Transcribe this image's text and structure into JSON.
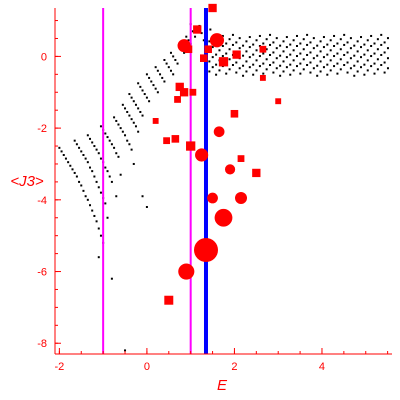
{
  "chart_data": {
    "type": "scatter",
    "title": "",
    "xlabel": "E",
    "ylabel": "<J3>",
    "xlim": [
      -2.1,
      5.6
    ],
    "ylim": [
      -8.3,
      1.35
    ],
    "xticks": [
      -2,
      0,
      2,
      4
    ],
    "yticks": [
      0,
      -2,
      -4,
      -6,
      -8
    ],
    "grid": false,
    "colors": {
      "axis": "#ff0000",
      "bulk_points": "#000000",
      "highlighted_states": "#ff0000",
      "marker_lines": "#ff00ff",
      "reference_line": "#0000ff"
    },
    "vertical_lines": [
      {
        "x": -1.0,
        "color": "#ff00ff"
      },
      {
        "x": 1.0,
        "color": "#ff00ff"
      },
      {
        "x": 1.35,
        "color": "#0000ff"
      }
    ],
    "highlighted_points": [
      {
        "x": 1.35,
        "y": -5.4,
        "weight": 1.0
      },
      {
        "x": 1.75,
        "y": -4.5,
        "weight": 0.55
      },
      {
        "x": 0.9,
        "y": -6.0,
        "weight": 0.45
      },
      {
        "x": 1.25,
        "y": -2.75,
        "weight": 0.3
      },
      {
        "x": 1.6,
        "y": 0.45,
        "weight": 0.35
      },
      {
        "x": 0.85,
        "y": 0.3,
        "weight": 0.3
      },
      {
        "x": 2.15,
        "y": -3.95,
        "weight": 0.25
      },
      {
        "x": 1.5,
        "y": -3.95,
        "weight": 0.2
      },
      {
        "x": 1.65,
        "y": -2.1,
        "weight": 0.2
      },
      {
        "x": 1.9,
        "y": -3.15,
        "weight": 0.18
      },
      {
        "x": 1.0,
        "y": -2.5,
        "weight": 0.15
      },
      {
        "x": 2.5,
        "y": -3.25,
        "weight": 0.12
      },
      {
        "x": 0.5,
        "y": -6.8,
        "weight": 0.14
      },
      {
        "x": 0.85,
        "y": -1.0,
        "weight": 0.12
      },
      {
        "x": 0.75,
        "y": -0.85,
        "weight": 0.12
      },
      {
        "x": 1.75,
        "y": -0.15,
        "weight": 0.15
      },
      {
        "x": 2.05,
        "y": 0.05,
        "weight": 0.12
      },
      {
        "x": 1.15,
        "y": 0.75,
        "weight": 0.12
      },
      {
        "x": 1.5,
        "y": 1.35,
        "weight": 0.12
      },
      {
        "x": 0.95,
        "y": 0.2,
        "weight": 0.1
      },
      {
        "x": 1.3,
        "y": -0.05,
        "weight": 0.1
      },
      {
        "x": 2.0,
        "y": -1.6,
        "weight": 0.1
      },
      {
        "x": 0.65,
        "y": -2.3,
        "weight": 0.1
      },
      {
        "x": 0.7,
        "y": -1.2,
        "weight": 0.08
      },
      {
        "x": 2.65,
        "y": 0.2,
        "weight": 0.08
      },
      {
        "x": 1.4,
        "y": 0.2,
        "weight": 0.1
      },
      {
        "x": 0.45,
        "y": -2.35,
        "weight": 0.08
      },
      {
        "x": 1.05,
        "y": -1.0,
        "weight": 0.08
      },
      {
        "x": 2.15,
        "y": -2.85,
        "weight": 0.08
      },
      {
        "x": 0.2,
        "y": -1.8,
        "weight": 0.06
      },
      {
        "x": 2.65,
        "y": -0.6,
        "weight": 0.06
      },
      {
        "x": 3.0,
        "y": -1.25,
        "weight": 0.06
      }
    ],
    "bulk_points": [
      {
        "x": -2.0,
        "y": -2.55
      },
      {
        "x": -1.95,
        "y": -2.65
      },
      {
        "x": -1.9,
        "y": -2.75
      },
      {
        "x": -1.85,
        "y": -2.85
      },
      {
        "x": -1.8,
        "y": -2.95
      },
      {
        "x": -1.75,
        "y": -3.05
      },
      {
        "x": -1.7,
        "y": -3.15
      },
      {
        "x": -1.65,
        "y": -3.25
      },
      {
        "x": -1.6,
        "y": -3.35
      },
      {
        "x": -1.55,
        "y": -3.5
      },
      {
        "x": -1.5,
        "y": -3.6
      },
      {
        "x": -1.45,
        "y": -3.75
      },
      {
        "x": -1.4,
        "y": -3.9
      },
      {
        "x": -1.35,
        "y": -4.0
      },
      {
        "x": -1.3,
        "y": -4.15
      },
      {
        "x": -1.25,
        "y": -4.3
      },
      {
        "x": -1.2,
        "y": -4.45
      },
      {
        "x": -1.15,
        "y": -4.6
      },
      {
        "x": -1.1,
        "y": -4.8
      },
      {
        "x": -1.05,
        "y": -5.0
      },
      {
        "x": -1.0,
        "y": -5.2
      },
      {
        "x": -1.65,
        "y": -2.35
      },
      {
        "x": -1.6,
        "y": -2.45
      },
      {
        "x": -1.55,
        "y": -2.55
      },
      {
        "x": -1.5,
        "y": -2.65
      },
      {
        "x": -1.45,
        "y": -2.75
      },
      {
        "x": -1.4,
        "y": -2.85
      },
      {
        "x": -1.35,
        "y": -2.95
      },
      {
        "x": -1.3,
        "y": -3.1
      },
      {
        "x": -1.25,
        "y": -3.2
      },
      {
        "x": -1.2,
        "y": -3.35
      },
      {
        "x": -1.15,
        "y": -3.5
      },
      {
        "x": -1.1,
        "y": -3.65
      },
      {
        "x": -1.05,
        "y": -3.8
      },
      {
        "x": -1.0,
        "y": -3.95
      },
      {
        "x": -0.95,
        "y": -4.1
      },
      {
        "x": -1.35,
        "y": -2.2
      },
      {
        "x": -1.3,
        "y": -2.3
      },
      {
        "x": -1.25,
        "y": -2.4
      },
      {
        "x": -1.2,
        "y": -2.5
      },
      {
        "x": -1.15,
        "y": -2.6
      },
      {
        "x": -1.1,
        "y": -2.7
      },
      {
        "x": -1.05,
        "y": -2.85
      },
      {
        "x": -1.0,
        "y": -2.95
      },
      {
        "x": -0.95,
        "y": -3.1
      },
      {
        "x": -0.9,
        "y": -3.2
      },
      {
        "x": -0.85,
        "y": -3.35
      },
      {
        "x": -0.8,
        "y": -3.5
      },
      {
        "x": -1.05,
        "y": -1.95
      },
      {
        "x": -1.0,
        "y": -2.05
      },
      {
        "x": -0.95,
        "y": -2.15
      },
      {
        "x": -0.9,
        "y": -2.25
      },
      {
        "x": -0.85,
        "y": -2.35
      },
      {
        "x": -0.8,
        "y": -2.45
      },
      {
        "x": -0.75,
        "y": -2.55
      },
      {
        "x": -0.7,
        "y": -2.7
      },
      {
        "x": -0.65,
        "y": -2.8
      },
      {
        "x": -0.75,
        "y": -1.7
      },
      {
        "x": -0.7,
        "y": -1.8
      },
      {
        "x": -0.65,
        "y": -1.9
      },
      {
        "x": -0.6,
        "y": -2.0
      },
      {
        "x": -0.55,
        "y": -2.1
      },
      {
        "x": -0.5,
        "y": -2.2
      },
      {
        "x": -0.45,
        "y": -2.35
      },
      {
        "x": -0.4,
        "y": -2.45
      },
      {
        "x": -0.35,
        "y": -2.6
      },
      {
        "x": -0.55,
        "y": -1.35
      },
      {
        "x": -0.5,
        "y": -1.45
      },
      {
        "x": -0.45,
        "y": -1.55
      },
      {
        "x": -0.4,
        "y": -1.65
      },
      {
        "x": -0.35,
        "y": -1.75
      },
      {
        "x": -0.3,
        "y": -1.85
      },
      {
        "x": -0.25,
        "y": -1.95
      },
      {
        "x": -0.2,
        "y": -2.1
      },
      {
        "x": -0.4,
        "y": -1.05
      },
      {
        "x": -0.35,
        "y": -1.15
      },
      {
        "x": -0.3,
        "y": -1.25
      },
      {
        "x": -0.25,
        "y": -1.35
      },
      {
        "x": -0.2,
        "y": -1.45
      },
      {
        "x": -0.15,
        "y": -1.55
      },
      {
        "x": -0.1,
        "y": -1.65
      },
      {
        "x": -0.2,
        "y": -0.75
      },
      {
        "x": -0.15,
        "y": -0.85
      },
      {
        "x": -0.1,
        "y": -0.95
      },
      {
        "x": -0.05,
        "y": -1.05
      },
      {
        "x": 0.0,
        "y": -1.15
      },
      {
        "x": 0.05,
        "y": -1.25
      },
      {
        "x": 0.0,
        "y": -0.5
      },
      {
        "x": 0.05,
        "y": -0.6
      },
      {
        "x": 0.1,
        "y": -0.7
      },
      {
        "x": 0.15,
        "y": -0.8
      },
      {
        "x": 0.2,
        "y": -0.9
      },
      {
        "x": 0.25,
        "y": -1.0
      },
      {
        "x": 0.2,
        "y": -0.3
      },
      {
        "x": 0.25,
        "y": -0.4
      },
      {
        "x": 0.3,
        "y": -0.5
      },
      {
        "x": 0.35,
        "y": -0.6
      },
      {
        "x": 0.4,
        "y": -0.7
      },
      {
        "x": 0.4,
        "y": -0.1
      },
      {
        "x": 0.45,
        "y": -0.2
      },
      {
        "x": 0.5,
        "y": -0.3
      },
      {
        "x": 0.55,
        "y": -0.4
      },
      {
        "x": 0.6,
        "y": -0.5
      },
      {
        "x": 0.55,
        "y": 0.1
      },
      {
        "x": 0.6,
        "y": 0.0
      },
      {
        "x": 0.65,
        "y": -0.1
      },
      {
        "x": 0.7,
        "y": -0.2
      },
      {
        "x": 0.75,
        "y": 0.3
      },
      {
        "x": 0.8,
        "y": 0.2
      },
      {
        "x": 0.85,
        "y": 0.1
      },
      {
        "x": 0.9,
        "y": 0.55
      },
      {
        "x": 0.95,
        "y": 0.45
      },
      {
        "x": 1.0,
        "y": 0.35
      },
      {
        "x": 1.0,
        "y": 0.9
      },
      {
        "x": 1.05,
        "y": 0.7
      },
      {
        "x": 1.1,
        "y": 0.55
      },
      {
        "x": 1.2,
        "y": 0.85
      },
      {
        "x": 1.25,
        "y": 0.65
      },
      {
        "x": 1.3,
        "y": 0.45
      },
      {
        "x": 1.45,
        "y": 0.75
      },
      {
        "x": 1.5,
        "y": 0.55
      },
      {
        "x": -0.6,
        "y": -3.3
      },
      {
        "x": -0.7,
        "y": -3.9
      },
      {
        "x": -0.9,
        "y": -4.5
      },
      {
        "x": -0.3,
        "y": -3.0
      },
      {
        "x": -0.1,
        "y": -3.9
      },
      {
        "x": 0.0,
        "y": -4.2
      },
      {
        "x": -0.8,
        "y": -6.2
      },
      {
        "x": -0.5,
        "y": -8.2
      },
      {
        "x": -1.1,
        "y": -5.6
      }
    ]
  }
}
